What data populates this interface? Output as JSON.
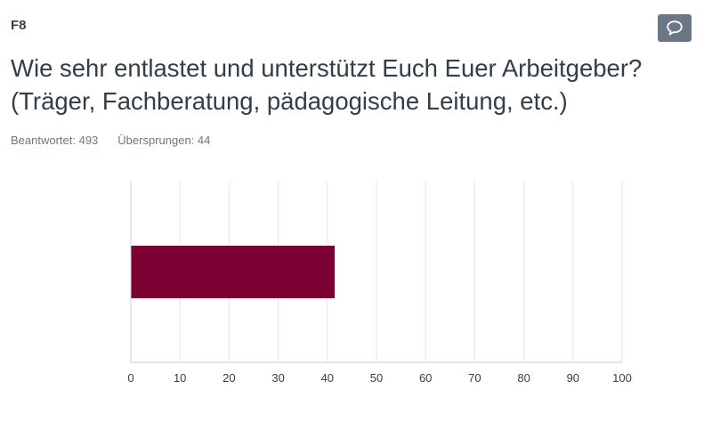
{
  "question": {
    "id": "F8",
    "title": "Wie sehr entlastet und unterstützt Euch Euer Arbeitgeber? (Träger, Fachberatung, pädagogische Leitung, etc.)"
  },
  "stats": {
    "answered": "Beantwortet: 493",
    "skipped": "Übersprungen: 44"
  },
  "icons": {
    "comment": "comment-bubble-icon"
  },
  "colors": {
    "bar": "#7d0033",
    "comment_button": "#6b7785",
    "grid": "#e4e6e8",
    "axis": "#c9ced3"
  },
  "chart_data": {
    "type": "bar",
    "orientation": "horizontal",
    "categories": [
      ""
    ],
    "values": [
      41.5
    ],
    "xlim": [
      0,
      100
    ],
    "ticks": [
      0,
      10,
      20,
      30,
      40,
      50,
      60,
      70,
      80,
      90,
      100
    ],
    "tick_labels": [
      "0",
      "10",
      "20",
      "30",
      "40",
      "50",
      "60",
      "70",
      "80",
      "90",
      "100"
    ],
    "grid": true
  }
}
